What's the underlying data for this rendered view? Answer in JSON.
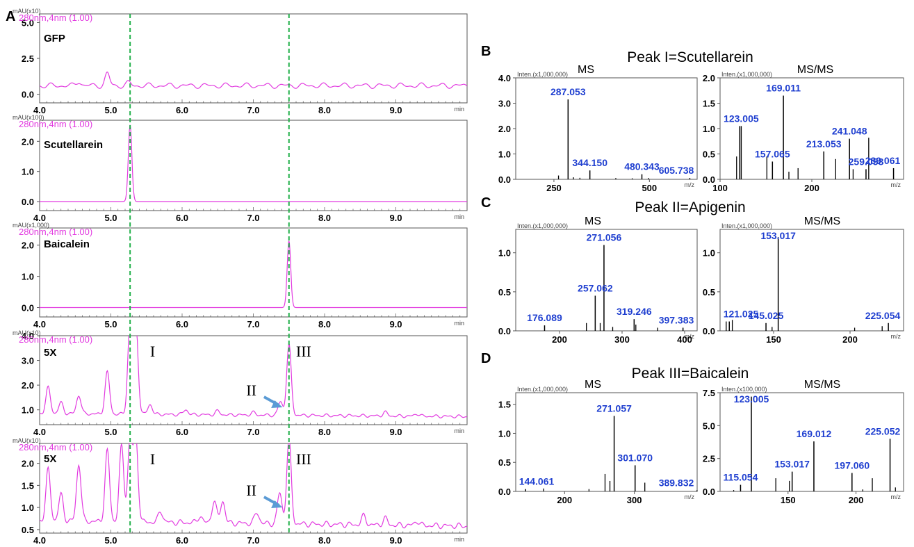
{
  "panel_labels": {
    "a": "A",
    "b": "B",
    "c": "C",
    "d": "D"
  },
  "colors": {
    "trace": "#e23be0",
    "guide": "#22b04a",
    "peak_label": "#1f3fd0",
    "leader": "#e23b2f",
    "arrow": "#5b9bd5",
    "stick": "#000000"
  },
  "chromatograms": {
    "header": "280nm,4nm (1.00)",
    "x_unit": "min",
    "x_ticks": [
      "4.0",
      "5.0",
      "6.0",
      "7.0",
      "8.0",
      "9.0"
    ],
    "guide_times": [
      5.27,
      7.5
    ],
    "peak_markers": {
      "i": "I",
      "ii": "II",
      "iii": "III"
    }
  },
  "ms": {
    "inten_label": "Inten.(x1,000,000)",
    "inten_label_100k": "Inten.(x100,000)",
    "mz_unit": "m/z",
    "ms_label": "MS",
    "msms_label": "MS/MS"
  },
  "chart_data": [
    {
      "type": "line",
      "title": "GFP",
      "ylabel": "mAU(x10)",
      "xlabel": "min",
      "xlim": [
        4.0,
        10.0
      ],
      "ylim": [
        -0.6,
        5.6
      ],
      "y_ticks": [
        "5.0",
        "2.5",
        "0.0"
      ],
      "baseline": 0.6,
      "peaks": [
        {
          "x": 4.55,
          "y": 0.9
        },
        {
          "x": 4.95,
          "y": 1.45
        },
        {
          "x": 5.25,
          "y": 0.8
        },
        {
          "x": 5.6,
          "y": 0.6
        }
      ]
    },
    {
      "type": "line",
      "title": "Scutellarein",
      "ylabel": "mAU(x100)",
      "xlabel": "min",
      "xlim": [
        4.0,
        10.0
      ],
      "ylim": [
        -0.3,
        2.7
      ],
      "y_ticks": [
        "2.0",
        "1.0",
        "0.0"
      ],
      "baseline": 0.0,
      "peaks": [
        {
          "x": 5.27,
          "y": 2.55
        }
      ]
    },
    {
      "type": "line",
      "title": "Baicalein",
      "ylabel": "mAU(x1,000)",
      "xlabel": "min",
      "xlim": [
        4.0,
        10.0
      ],
      "ylim": [
        -0.3,
        2.55
      ],
      "y_ticks": [
        "2.0",
        "1.0",
        "0.0"
      ],
      "baseline": 0.0,
      "peaks": [
        {
          "x": 7.5,
          "y": 2.15
        }
      ]
    },
    {
      "type": "line",
      "title": "5X",
      "ylabel": "mAU(x10)",
      "xlabel": "min",
      "xlim": [
        4.0,
        10.0
      ],
      "ylim": [
        0.4,
        4.0
      ],
      "y_ticks": [
        "4.0",
        "3.0",
        "2.0",
        "1.0"
      ],
      "baseline": 0.85,
      "peaks": [
        {
          "x": 4.12,
          "y": 1.9
        },
        {
          "x": 4.3,
          "y": 1.3
        },
        {
          "x": 4.55,
          "y": 1.6
        },
        {
          "x": 4.95,
          "y": 2.55
        },
        {
          "x": 5.27,
          "y": 4.6
        },
        {
          "x": 5.35,
          "y": 4.6
        },
        {
          "x": 5.55,
          "y": 1.25
        },
        {
          "x": 6.05,
          "y": 1.05
        },
        {
          "x": 6.5,
          "y": 1.0
        },
        {
          "x": 7.0,
          "y": 0.95
        },
        {
          "x": 7.38,
          "y": 1.4
        },
        {
          "x": 7.5,
          "y": 3.7
        },
        {
          "x": 8.85,
          "y": 1.0
        },
        {
          "x": 9.3,
          "y": 0.95
        }
      ]
    },
    {
      "type": "line",
      "title": "5X",
      "ylabel": "mAU(x10)",
      "xlabel": "min",
      "xlim": [
        4.0,
        10.0
      ],
      "ylim": [
        0.42,
        2.45
      ],
      "y_ticks": [
        "2.0",
        "1.5",
        "1.0",
        "0.5"
      ],
      "baseline": 0.7,
      "peaks": [
        {
          "x": 4.12,
          "y": 1.85
        },
        {
          "x": 4.3,
          "y": 1.3
        },
        {
          "x": 4.55,
          "y": 2.0
        },
        {
          "x": 4.95,
          "y": 2.3
        },
        {
          "x": 5.15,
          "y": 2.4
        },
        {
          "x": 5.27,
          "y": 2.6
        },
        {
          "x": 5.35,
          "y": 2.6
        },
        {
          "x": 5.7,
          "y": 0.95
        },
        {
          "x": 6.25,
          "y": 0.85
        },
        {
          "x": 6.45,
          "y": 1.2
        },
        {
          "x": 6.57,
          "y": 1.2
        },
        {
          "x": 7.05,
          "y": 0.95
        },
        {
          "x": 7.37,
          "y": 1.4
        },
        {
          "x": 7.5,
          "y": 2.6
        },
        {
          "x": 8.55,
          "y": 0.9
        },
        {
          "x": 8.85,
          "y": 0.85
        },
        {
          "x": 9.3,
          "y": 0.8
        }
      ]
    },
    {
      "type": "bar",
      "title": "Peak I=Scutellarein MS",
      "xlabel": "m/z",
      "xlim": [
        150,
        625
      ],
      "ylim": [
        0,
        4.0
      ],
      "x_ticks": [
        250,
        500
      ],
      "y_ticks": [
        "4.0",
        "3.0",
        "2.0",
        "1.0",
        "0.0"
      ],
      "labeled": [
        {
          "mz": 287.053,
          "label": "287.053",
          "int": 3.15
        },
        {
          "mz": 344.15,
          "label": "344.150",
          "int": 0.35
        },
        {
          "mz": 480.343,
          "label": "480.343",
          "int": 0.2
        },
        {
          "mz": 605.738,
          "label": "605.738",
          "int": 0.05
        }
      ],
      "sticks": [
        [
          262,
          0.15
        ],
        [
          301,
          0.08
        ],
        [
          318,
          0.06
        ],
        [
          412,
          0.05
        ],
        [
          455,
          0.04
        ],
        [
          498,
          0.05
        ]
      ]
    },
    {
      "type": "bar",
      "title": "Peak I=Scutellarein MS/MS",
      "xlabel": "m/z",
      "xlim": [
        100,
        300
      ],
      "ylim": [
        0,
        2.0
      ],
      "x_ticks": [
        100,
        200
      ],
      "y_ticks": [
        "2.0",
        "1.5",
        "1.0",
        "0.5",
        "0.0"
      ],
      "labeled": [
        {
          "mz": 169.011,
          "label": "169.011",
          "int": 1.65
        },
        {
          "mz": 123.005,
          "label": "123.005",
          "int": 1.05
        },
        {
          "mz": 157.065,
          "label": "157.065",
          "int": 0.35
        },
        {
          "mz": 213.053,
          "label": "213.053",
          "int": 0.55
        },
        {
          "mz": 241.048,
          "label": "241.048",
          "int": 0.8
        },
        {
          "mz": 259.058,
          "label": "259.058",
          "int": 0.2
        },
        {
          "mz": 289.061,
          "label": "289.061",
          "int": 0.22
        }
      ],
      "sticks": [
        [
          121,
          1.05
        ],
        [
          118,
          0.45
        ],
        [
          151,
          0.45
        ],
        [
          175,
          0.15
        ],
        [
          185,
          0.22
        ],
        [
          226,
          0.4
        ],
        [
          245,
          0.2
        ],
        [
          262,
          0.82
        ]
      ]
    },
    {
      "type": "bar",
      "title": "Peak II=Apigenin MS",
      "xlabel": "m/z",
      "xlim": [
        130,
        420
      ],
      "ylim": [
        0,
        1.3
      ],
      "x_ticks": [
        200,
        300,
        400
      ],
      "y_ticks": [
        "1.0",
        "0.5",
        "0.0"
      ],
      "labeled": [
        {
          "mz": 271.056,
          "label": "271.056",
          "int": 1.1
        },
        {
          "mz": 257.062,
          "label": "257.062",
          "int": 0.45
        },
        {
          "mz": 176.089,
          "label": "176.089",
          "int": 0.07
        },
        {
          "mz": 319.246,
          "label": "319.246",
          "int": 0.15
        },
        {
          "mz": 397.383,
          "label": "397.383",
          "int": 0.04
        }
      ],
      "sticks": [
        [
          243,
          0.1
        ],
        [
          265,
          0.1
        ],
        [
          285,
          0.05
        ],
        [
          322,
          0.08
        ],
        [
          357,
          0.04
        ]
      ]
    },
    {
      "type": "bar",
      "title": "Peak II=Apigenin MS/MS",
      "xlabel": "m/z",
      "xlim": [
        115,
        235
      ],
      "ylim": [
        0,
        1.3
      ],
      "x_ticks": [
        150,
        200
      ],
      "y_ticks": [
        "1.0",
        "0.5",
        "0.0"
      ],
      "labeled": [
        {
          "mz": 153.017,
          "label": "153.017",
          "int": 1.2
        },
        {
          "mz": 121.025,
          "label": "121.025",
          "int": 0.12
        },
        {
          "mz": 145.025,
          "label": "145.025",
          "int": 0.1
        },
        {
          "mz": 225.054,
          "label": "225.054",
          "int": 0.1
        }
      ],
      "sticks": [
        [
          119,
          0.12
        ],
        [
          123,
          0.14
        ],
        [
          149,
          0.05
        ],
        [
          203,
          0.04
        ],
        [
          221,
          0.06
        ]
      ]
    },
    {
      "type": "bar",
      "title": "Peak III=Baicalein MS",
      "xlabel": "m/z",
      "xlim": [
        130,
        390
      ],
      "ylim": [
        0,
        1.7
      ],
      "x_ticks": [
        200,
        300
      ],
      "y_ticks": [
        "1.5",
        "1.0",
        "0.5",
        "0.0"
      ],
      "labeled": [
        {
          "mz": 271.057,
          "label": "271.057",
          "int": 1.3
        },
        {
          "mz": 301.07,
          "label": "301.070",
          "int": 0.45
        },
        {
          "mz": 144.061,
          "label": "144.061",
          "int": 0.04
        },
        {
          "mz": 389.832,
          "label": "389.832",
          "int": 0.02
        }
      ],
      "sticks": [
        [
          258,
          0.3
        ],
        [
          265,
          0.18
        ],
        [
          315,
          0.15
        ],
        [
          170,
          0.05
        ],
        [
          235,
          0.04
        ]
      ]
    },
    {
      "type": "bar",
      "title": "Peak III=Baicalein MS/MS",
      "xlabel": "m/z",
      "xlim": [
        100,
        235
      ],
      "ylim": [
        0,
        7.5
      ],
      "x_ticks": [
        150,
        200
      ],
      "y_ticks": [
        "7.5",
        "5.0",
        "2.5",
        "0.0"
      ],
      "labeled": [
        {
          "mz": 123.005,
          "label": "123.005",
          "int": 7.2
        },
        {
          "mz": 225.052,
          "label": "225.052",
          "int": 4.0
        },
        {
          "mz": 169.012,
          "label": "169.012",
          "int": 3.8
        },
        {
          "mz": 115.054,
          "label": "115.054",
          "int": 0.5
        },
        {
          "mz": 153.017,
          "label": "153.017",
          "int": 1.5
        },
        {
          "mz": 197.06,
          "label": "197.060",
          "int": 1.4
        }
      ],
      "sticks": [
        [
          141,
          1.0
        ],
        [
          151,
          0.8
        ],
        [
          212,
          1.0
        ],
        [
          205,
          0.15
        ],
        [
          110,
          0.1
        ],
        [
          229,
          0.3
        ]
      ]
    }
  ],
  "ms_titles": {
    "b": "Peak I=Scutellarein",
    "c": "Peak II=Apigenin",
    "d": "Peak III=Baicalein"
  }
}
